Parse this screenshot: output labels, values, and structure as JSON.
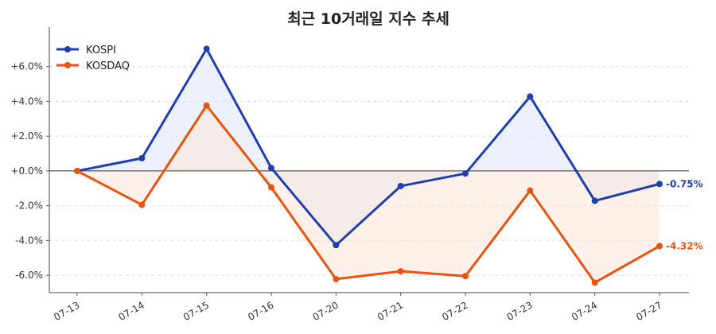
{
  "chart_data": {
    "type": "line",
    "title": "최근 10거래일 지수 추세",
    "xlabel": "",
    "ylabel": "",
    "categories": [
      "07-13",
      "07-14",
      "07-15",
      "07-16",
      "07-20",
      "07-21",
      "07-22",
      "07-23",
      "07-24",
      "07-27"
    ],
    "ylim": [
      -7.0,
      8.0
    ],
    "yticks": [
      -6,
      -4,
      -2,
      0,
      2,
      4,
      6
    ],
    "ytick_labels": [
      "-6.0%",
      "-4.0%",
      "-2.0%",
      "+0.0%",
      "+2.0%",
      "+4.0%",
      "+6.0%"
    ],
    "grid": "horizontal dashed",
    "legend_position": "top-left",
    "series": [
      {
        "name": "KOSPI",
        "color": "#1f3fae",
        "fill_color": "#dfe5f7",
        "values": [
          0.0,
          0.73,
          7.02,
          0.17,
          -4.27,
          -0.87,
          -0.15,
          4.28,
          -1.72,
          -0.75
        ],
        "end_label": "-0.75%"
      },
      {
        "name": "KOSDAQ",
        "color": "#e8540e",
        "fill_color": "#fbe5d8",
        "values": [
          0.0,
          -1.95,
          3.76,
          -0.95,
          -6.22,
          -5.77,
          -6.05,
          -1.13,
          -6.42,
          -4.32
        ],
        "end_label": "-4.32%"
      }
    ]
  }
}
